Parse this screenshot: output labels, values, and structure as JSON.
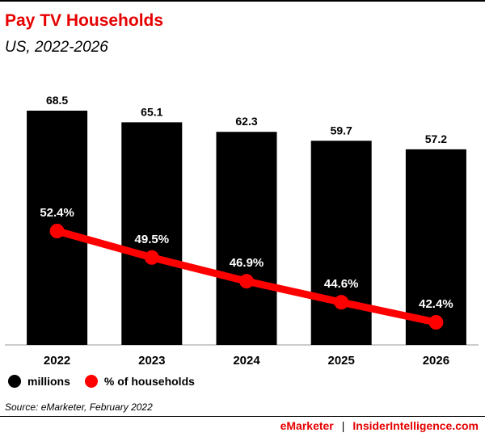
{
  "title": "Pay TV Households",
  "subtitle": "US, 2022-2026",
  "colors": {
    "accent": "#e60000",
    "bar": "#000000",
    "line": "#ff0000"
  },
  "legend": [
    {
      "label": "millions",
      "color": "#000000"
    },
    {
      "label": "% of households",
      "color": "#ff0000"
    }
  ],
  "source": "Source: eMarketer, February 2022",
  "footer": {
    "brand1": "eMarketer",
    "separator": "|",
    "brand2": "InsiderIntelligence.com"
  },
  "chart_data": {
    "type": "bar",
    "categories": [
      "2022",
      "2023",
      "2024",
      "2025",
      "2026"
    ],
    "series": [
      {
        "name": "millions",
        "type": "bar",
        "values": [
          68.5,
          65.1,
          62.3,
          59.7,
          57.2
        ],
        "labels": [
          "68.5",
          "65.1",
          "62.3",
          "59.7",
          "57.2"
        ]
      },
      {
        "name": "% of households",
        "type": "line",
        "values": [
          52.4,
          49.5,
          46.9,
          44.6,
          42.4
        ],
        "labels": [
          "52.4%",
          "49.5%",
          "46.9%",
          "44.6%",
          "42.4%"
        ]
      }
    ],
    "ylim_bar": [
      0,
      68.5
    ],
    "ylim_line": [
      0,
      100
    ],
    "grid": false,
    "legend_position": "bottom-left"
  }
}
